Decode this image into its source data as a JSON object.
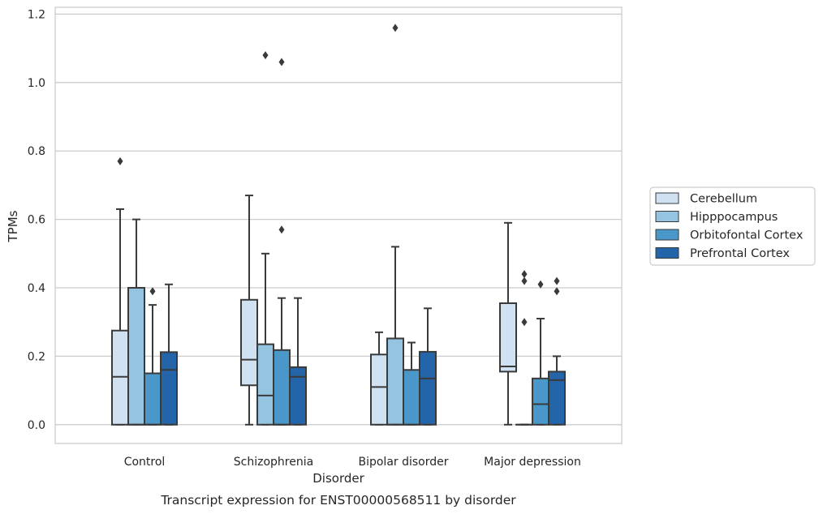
{
  "chart_data": {
    "type": "boxplot",
    "caption": "Transcript expression for ENST00000568511 by disorder",
    "xlabel": "Disorder",
    "ylabel": "TPMs",
    "ylim": [
      -0.055,
      1.22
    ],
    "yticks": [
      0.0,
      0.2,
      0.4,
      0.6,
      0.8,
      1.0,
      1.2
    ],
    "ytick_labels": [
      "0.0",
      "0.2",
      "0.4",
      "0.6",
      "0.8",
      "1.0",
      "1.2"
    ],
    "grid": "horizontal",
    "legend_position": "right",
    "categories": [
      "Control",
      "Schizophrenia",
      "Bipolar disorder",
      "Major depression"
    ],
    "series": [
      {
        "name": "Cerebellum",
        "color": "#d0e1f2",
        "boxes": [
          {
            "q1": 0.0,
            "median": 0.14,
            "q3": 0.275,
            "whisker_low": 0.0,
            "whisker_high": 0.63,
            "outliers": [
              0.77
            ]
          },
          {
            "q1": 0.115,
            "median": 0.19,
            "q3": 0.365,
            "whisker_low": 0.0,
            "whisker_high": 0.67,
            "outliers": []
          },
          {
            "q1": 0.0,
            "median": 0.11,
            "q3": 0.205,
            "whisker_low": 0.0,
            "whisker_high": 0.27,
            "outliers": []
          },
          {
            "q1": 0.155,
            "median": 0.17,
            "q3": 0.355,
            "whisker_low": 0.0,
            "whisker_high": 0.59,
            "outliers": []
          }
        ]
      },
      {
        "name": "Hipppocampus",
        "color": "#94c4df",
        "boxes": [
          {
            "q1": 0.0,
            "median": 0.0,
            "q3": 0.4,
            "whisker_low": 0.0,
            "whisker_high": 0.6,
            "outliers": []
          },
          {
            "q1": 0.0,
            "median": 0.085,
            "q3": 0.235,
            "whisker_low": 0.0,
            "whisker_high": 0.5,
            "outliers": [
              1.08
            ]
          },
          {
            "q1": 0.0,
            "median": 0.0,
            "q3": 0.252,
            "whisker_low": 0.0,
            "whisker_high": 0.52,
            "outliers": [
              1.16
            ]
          },
          {
            "q1": 0.0,
            "median": 0.0,
            "q3": 0.0,
            "whisker_low": 0.0,
            "whisker_high": 0.0,
            "outliers": [
              0.3,
              0.42,
              0.44
            ]
          }
        ]
      },
      {
        "name": "Orbitofontal Cortex",
        "color": "#4a98c9",
        "boxes": [
          {
            "q1": 0.0,
            "median": 0.0,
            "q3": 0.15,
            "whisker_low": 0.0,
            "whisker_high": 0.35,
            "outliers": [
              0.39
            ]
          },
          {
            "q1": 0.0,
            "median": 0.0,
            "q3": 0.218,
            "whisker_low": 0.0,
            "whisker_high": 0.37,
            "outliers": [
              0.57,
              1.06
            ]
          },
          {
            "q1": 0.0,
            "median": 0.0,
            "q3": 0.16,
            "whisker_low": 0.0,
            "whisker_high": 0.24,
            "outliers": []
          },
          {
            "q1": 0.0,
            "median": 0.06,
            "q3": 0.135,
            "whisker_low": 0.0,
            "whisker_high": 0.31,
            "outliers": [
              0.41
            ]
          }
        ]
      },
      {
        "name": "Prefrontal Cortex",
        "color": "#2464a8",
        "boxes": [
          {
            "q1": 0.0,
            "median": 0.16,
            "q3": 0.212,
            "whisker_low": 0.0,
            "whisker_high": 0.41,
            "outliers": []
          },
          {
            "q1": 0.0,
            "median": 0.14,
            "q3": 0.168,
            "whisker_low": 0.0,
            "whisker_high": 0.37,
            "outliers": []
          },
          {
            "q1": 0.0,
            "median": 0.135,
            "q3": 0.213,
            "whisker_low": 0.0,
            "whisker_high": 0.34,
            "outliers": []
          },
          {
            "q1": 0.0,
            "median": 0.13,
            "q3": 0.155,
            "whisker_low": 0.0,
            "whisker_high": 0.2,
            "outliers": [
              0.39,
              0.42
            ]
          }
        ]
      }
    ]
  },
  "colors": {
    "box_edge": "#3a3a3a",
    "grid": "#cccccc",
    "frame": "#cccccc",
    "text": "#262626"
  }
}
